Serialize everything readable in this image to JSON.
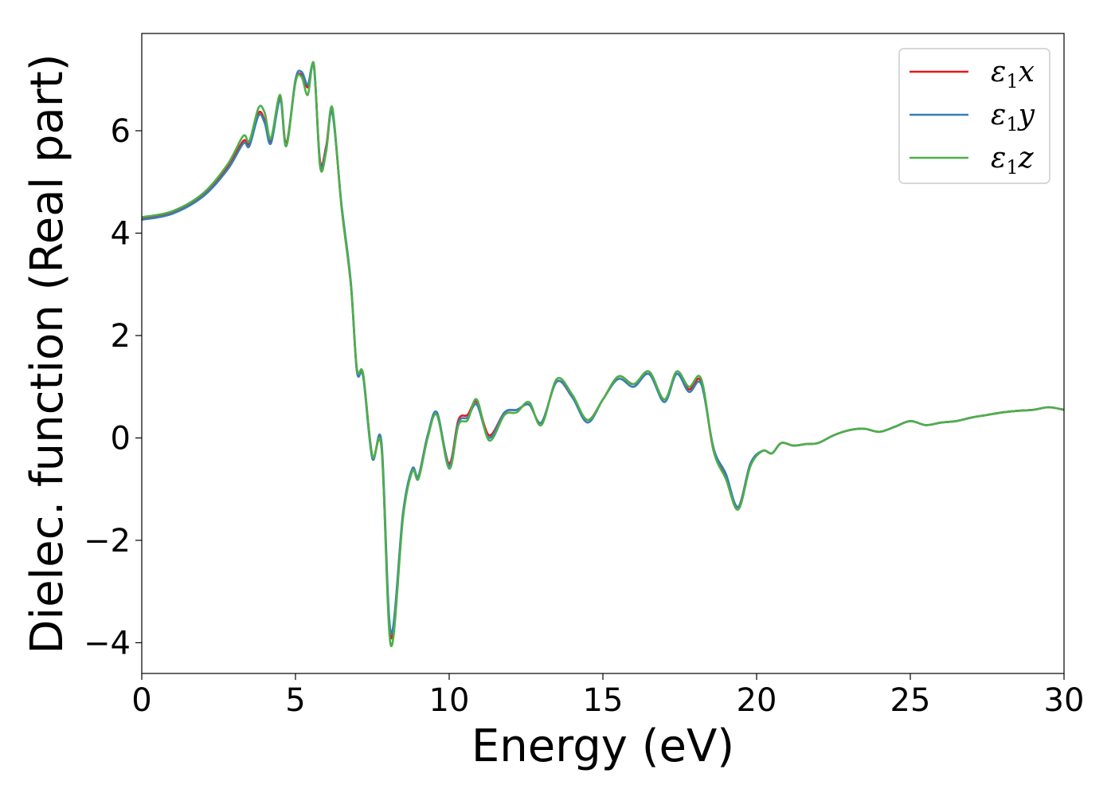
{
  "chart_data": {
    "type": "line",
    "xlabel": "Energy (eV)",
    "ylabel": "Dielec. function (Real part)",
    "xlim": [
      0,
      30
    ],
    "ylim": [
      -4.6,
      7.9
    ],
    "xticks": [
      0,
      5,
      10,
      15,
      20,
      25,
      30
    ],
    "yticks": [
      -4,
      -2,
      0,
      2,
      4,
      6
    ],
    "xtick_labels": [
      "0",
      "5",
      "10",
      "15",
      "20",
      "25",
      "30"
    ],
    "ytick_labels": [
      "−4",
      "−2",
      "0",
      "2",
      "4",
      "6"
    ],
    "grid": false,
    "legend_position": "top-right",
    "x": [
      0,
      1,
      2,
      2.8,
      3.3,
      3.5,
      3.8,
      4.0,
      4.2,
      4.5,
      4.7,
      5.0,
      5.2,
      5.4,
      5.6,
      5.8,
      6.0,
      6.2,
      6.5,
      6.8,
      7.0,
      7.2,
      7.5,
      7.8,
      8.1,
      8.5,
      8.8,
      9.0,
      9.3,
      9.6,
      10.0,
      10.3,
      10.6,
      10.9,
      11.3,
      11.8,
      12.2,
      12.6,
      13.0,
      13.5,
      14.0,
      14.5,
      15.0,
      15.5,
      16.0,
      16.5,
      17.0,
      17.4,
      17.8,
      18.2,
      18.6,
      19.0,
      19.4,
      19.8,
      20.2,
      20.5,
      20.8,
      21.2,
      21.6,
      22.0,
      22.5,
      23.0,
      23.5,
      24.0,
      24.5,
      25.0,
      25.5,
      26.0,
      26.5,
      27.0,
      27.5,
      28.0,
      28.5,
      29.0,
      29.5,
      30.0
    ],
    "series": [
      {
        "name": "ε₁x",
        "color": "#e41a1c",
        "values": [
          4.28,
          4.4,
          4.75,
          5.3,
          5.8,
          5.75,
          6.35,
          6.2,
          5.8,
          6.65,
          5.75,
          6.95,
          7.1,
          6.85,
          7.25,
          5.4,
          5.7,
          6.4,
          4.5,
          3.0,
          1.3,
          1.25,
          -0.35,
          -0.2,
          -3.9,
          -1.5,
          -0.65,
          -0.75,
          0.05,
          0.45,
          -0.5,
          0.35,
          0.45,
          0.7,
          0.05,
          0.5,
          0.55,
          0.65,
          0.3,
          1.1,
          0.8,
          0.35,
          0.75,
          1.2,
          1.05,
          1.25,
          0.75,
          1.25,
          0.95,
          1.1,
          -0.25,
          -0.75,
          -1.35,
          -0.5,
          -0.25,
          -0.3,
          -0.1,
          -0.15,
          -0.12,
          -0.1,
          0.05,
          0.15,
          0.18,
          0.12,
          0.22,
          0.33,
          0.25,
          0.3,
          0.33,
          0.4,
          0.45,
          0.5,
          0.53,
          0.55,
          0.6,
          0.55
        ]
      },
      {
        "name": "ε₁y",
        "color": "#377eb8",
        "values": [
          4.26,
          4.38,
          4.72,
          5.25,
          5.75,
          5.7,
          6.3,
          6.15,
          5.75,
          6.6,
          5.7,
          7.0,
          7.15,
          6.9,
          7.25,
          5.35,
          5.65,
          6.35,
          4.55,
          3.05,
          1.3,
          1.2,
          -0.4,
          -0.1,
          -3.8,
          -1.45,
          -0.6,
          -0.75,
          0.05,
          0.5,
          -0.55,
          0.3,
          0.4,
          0.65,
          0.0,
          0.5,
          0.55,
          0.65,
          0.3,
          1.1,
          0.8,
          0.3,
          0.75,
          1.15,
          1.0,
          1.25,
          0.7,
          1.25,
          0.9,
          1.05,
          -0.2,
          -0.7,
          -1.35,
          -0.5,
          -0.25,
          -0.3,
          -0.1,
          -0.15,
          -0.12,
          -0.1,
          0.05,
          0.15,
          0.18,
          0.12,
          0.22,
          0.33,
          0.25,
          0.3,
          0.33,
          0.4,
          0.45,
          0.5,
          0.53,
          0.55,
          0.6,
          0.55
        ]
      },
      {
        "name": "ε₁z",
        "color": "#4daf4a",
        "values": [
          4.31,
          4.43,
          4.78,
          5.35,
          5.9,
          5.8,
          6.45,
          6.35,
          5.85,
          6.7,
          5.7,
          6.95,
          7.05,
          6.7,
          7.3,
          5.3,
          5.6,
          6.45,
          4.5,
          3.0,
          1.35,
          1.25,
          -0.35,
          -0.2,
          -4.05,
          -1.55,
          -0.65,
          -0.8,
          0.0,
          0.45,
          -0.6,
          0.25,
          0.35,
          0.75,
          -0.05,
          0.45,
          0.5,
          0.7,
          0.25,
          1.15,
          0.85,
          0.35,
          0.75,
          1.2,
          1.05,
          1.3,
          0.75,
          1.3,
          1.0,
          1.15,
          -0.25,
          -0.8,
          -1.4,
          -0.55,
          -0.25,
          -0.3,
          -0.1,
          -0.15,
          -0.12,
          -0.1,
          0.05,
          0.15,
          0.18,
          0.12,
          0.22,
          0.33,
          0.25,
          0.3,
          0.33,
          0.4,
          0.45,
          0.5,
          0.53,
          0.55,
          0.6,
          0.55
        ]
      }
    ]
  }
}
